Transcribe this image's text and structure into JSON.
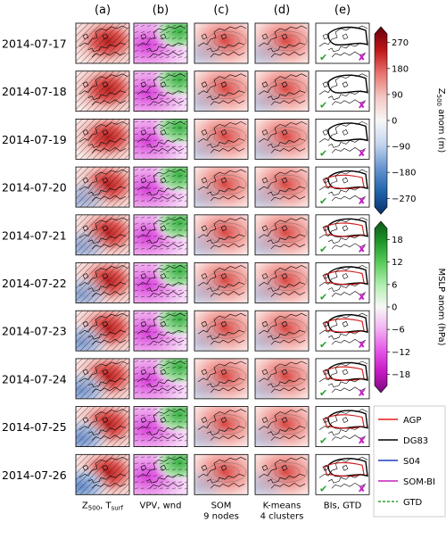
{
  "column_headers": [
    "(a)",
    "(b)",
    "(c)",
    "(d)",
    "(e)"
  ],
  "column_footers": [
    {
      "main": "Z",
      "sub1": "500",
      "mid": ", T",
      "sub2": "surf"
    },
    {
      "main": "VPV, wnd"
    },
    {
      "main": "SOM",
      "line2": "9 nodes"
    },
    {
      "main": "K-means",
      "line2": "4 clusters"
    },
    {
      "main": "BIs, GTD"
    }
  ],
  "dates": [
    "2014-07-17",
    "2014-07-18",
    "2014-07-19",
    "2014-07-20",
    "2014-07-21",
    "2014-07-22",
    "2014-07-23",
    "2014-07-24",
    "2014-07-25",
    "2014-07-26"
  ],
  "gtd_marks": [
    "✔",
    "✘"
  ],
  "colors": {
    "check": "#2ca02c",
    "cross": "#c020c0",
    "red": "#d22020",
    "blue": "#2040c0",
    "green": "#2ca02c",
    "magenta": "#c020c0"
  },
  "chart_data": [
    {
      "type": "heatmap",
      "title": "",
      "colorbar_label": {
        "pre": "Z",
        "sub": "500",
        "post": " anom (m)"
      },
      "ticks": [
        -270,
        -180,
        -90,
        0,
        90,
        180,
        270
      ],
      "tick_labels": [
        "−270",
        "−180",
        "−90",
        "0",
        "90",
        "180",
        "270"
      ],
      "range": [
        -300,
        300
      ],
      "colormap": [
        "#08306b",
        "#2166ac",
        "#6a96d0",
        "#c4d6ee",
        "#f7f7f7",
        "#f4c7c3",
        "#e8746f",
        "#c01717",
        "#67000d"
      ]
    },
    {
      "type": "heatmap",
      "title": "",
      "colorbar_label": {
        "pre": "MSLP anom (hPa)"
      },
      "ticks": [
        -18,
        -12,
        -6,
        0,
        6,
        12,
        18
      ],
      "tick_labels": [
        "−18",
        "−12",
        "−6",
        "0",
        "6",
        "12",
        "18"
      ],
      "range": [
        -21,
        21
      ],
      "colormap": [
        "#7b0a7e",
        "#c61ac4",
        "#e659e8",
        "#f3b3f2",
        "#f7f7f7",
        "#b3efb3",
        "#5fcf5f",
        "#1f9a2a",
        "#0b5a17"
      ]
    }
  ],
  "legend": [
    {
      "label": "AGP",
      "color": "#e41a1c"
    },
    {
      "label": "DG83",
      "color": "#000000"
    },
    {
      "label": "S04",
      "color": "#1f3fbf"
    },
    {
      "label": "SOM-BI",
      "color": "#c020c0"
    },
    {
      "label": "GTD",
      "color": "#2ca02c",
      "dash": true
    }
  ]
}
